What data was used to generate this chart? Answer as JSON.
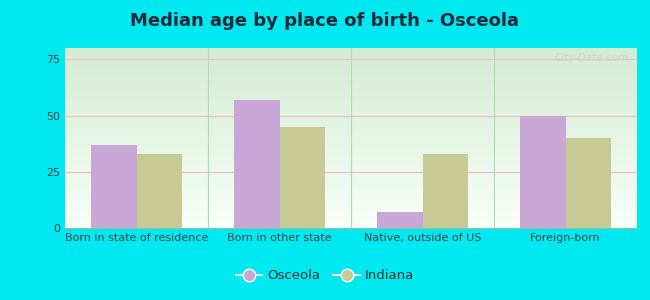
{
  "title": "Median age by place of birth - Osceola",
  "categories": [
    "Born in state of residence",
    "Born in other state",
    "Native, outside of US",
    "Foreign-born"
  ],
  "osceola_values": [
    37,
    57,
    7,
    50
  ],
  "indiana_values": [
    33,
    45,
    33,
    40
  ],
  "osceola_color": "#c9a8d8",
  "indiana_color": "#c8ca96",
  "background_outer": "#00e8f0",
  "ylim": [
    0,
    80
  ],
  "yticks": [
    0,
    25,
    50,
    75
  ],
  "bar_width": 0.32,
  "legend_labels": [
    "Osceola",
    "Indiana"
  ],
  "title_fontsize": 13,
  "tick_fontsize": 8,
  "legend_fontsize": 9.5,
  "grid_color": "#f0c0c0",
  "separator_color": "#aaddaa",
  "watermark_text": "City-Data.com",
  "watermark_color": "#c8d8c8"
}
